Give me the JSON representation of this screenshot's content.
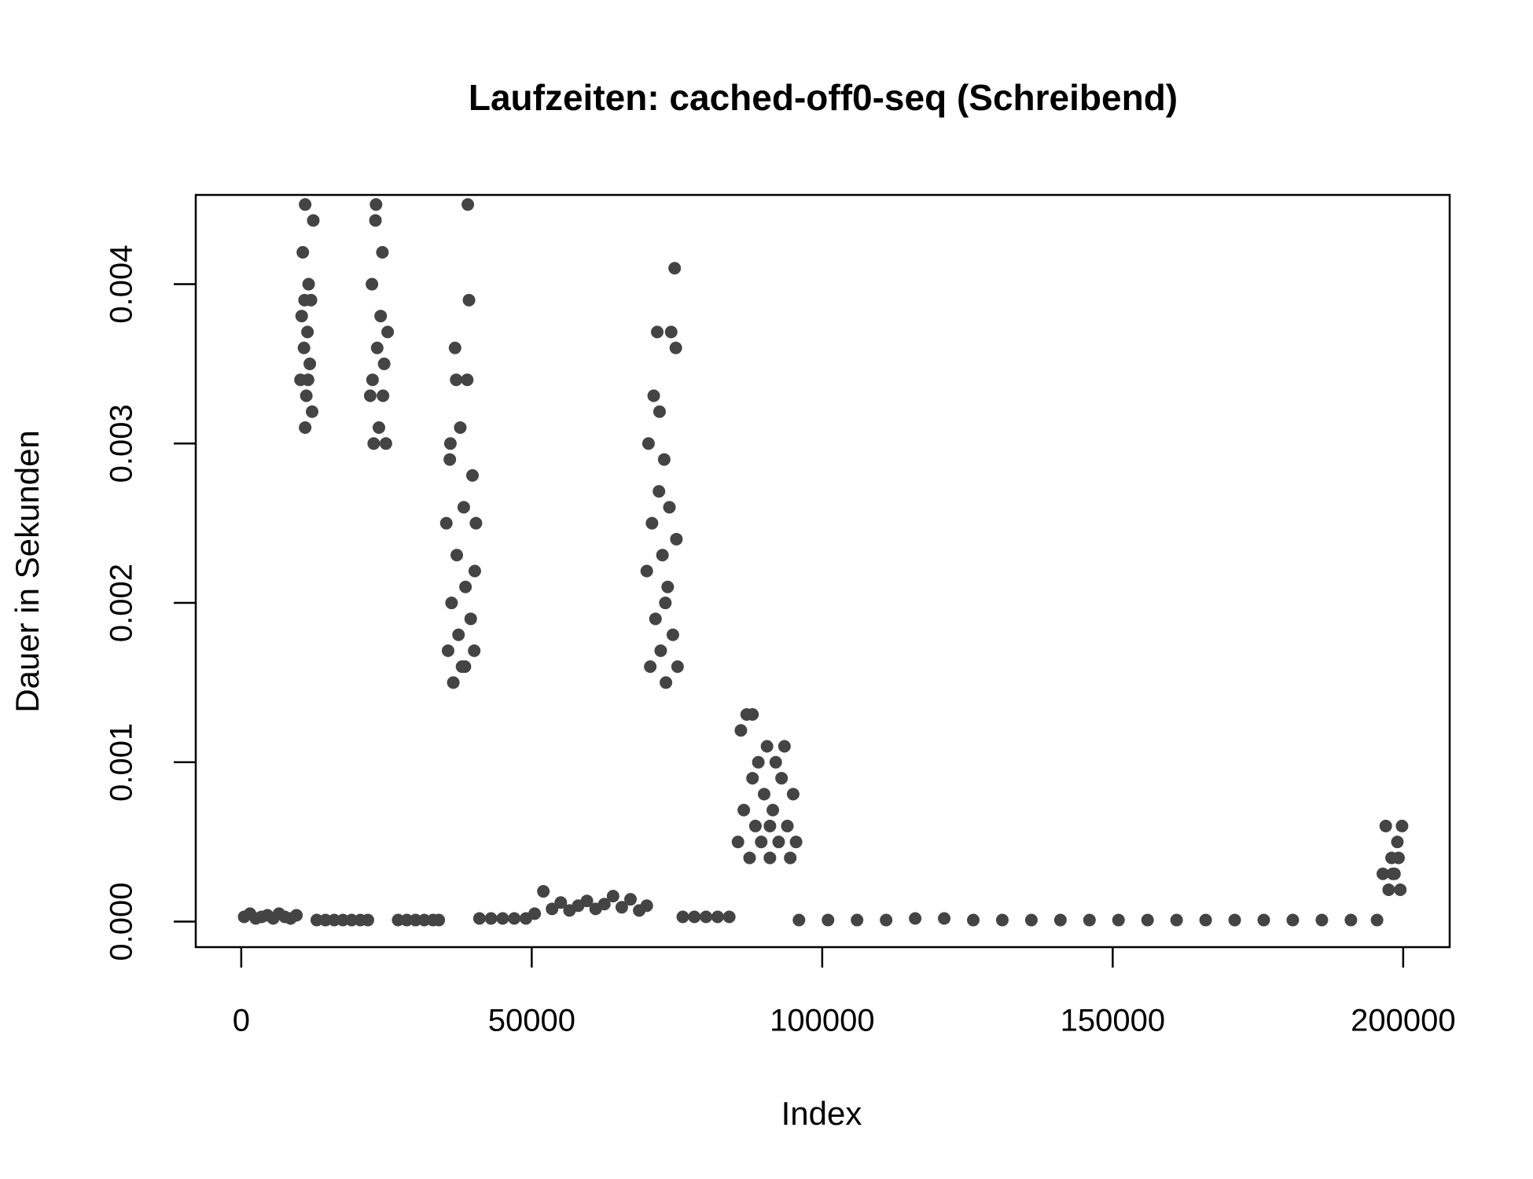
{
  "chart_data": {
    "type": "scatter",
    "title": "Laufzeiten: cached-off0-seq (Schreibend)",
    "x_label": "Index",
    "y_label": "Dauer in Sekunden",
    "color": "#444444",
    "xlim": [
      -7830,
      208000
    ],
    "ylim": [
      -0.00016,
      0.00456
    ],
    "xticks": [
      0,
      50000,
      100000,
      150000,
      200000
    ],
    "yticks": [
      {
        "value": 0,
        "label": "0.000"
      },
      {
        "value": 0.001,
        "label": "0.001"
      },
      {
        "value": 0.002,
        "label": "0.002"
      },
      {
        "value": 0.003,
        "label": "0.003"
      },
      {
        "value": 0.004,
        "label": "0.004"
      }
    ],
    "x": [
      500,
      1500,
      2500,
      3500,
      4500,
      5500,
      6500,
      7500,
      8500,
      9500,
      10200,
      10400,
      10600,
      10800,
      11000,
      11000,
      11200,
      11400,
      11600,
      11800,
      12000,
      12200,
      12400,
      11500,
      10900,
      13000,
      14500,
      16000,
      17500,
      19000,
      20500,
      21800,
      22200,
      22500,
      22800,
      23100,
      23400,
      23700,
      24000,
      24300,
      24600,
      24900,
      25200,
      23200,
      22600,
      24400,
      27000,
      28500,
      30000,
      31500,
      33000,
      34000,
      35300,
      35600,
      35900,
      36200,
      36500,
      36800,
      37100,
      37400,
      37700,
      38000,
      38300,
      38600,
      38900,
      39200,
      39500,
      39800,
      40100,
      40400,
      39000,
      37000,
      36000,
      38500,
      40200,
      41000,
      43000,
      45000,
      47000,
      49000,
      50500,
      52000,
      53500,
      55000,
      56500,
      58000,
      59500,
      61000,
      62500,
      64000,
      65500,
      67000,
      68500,
      69800,
      69800,
      70100,
      70400,
      70700,
      71000,
      71300,
      71600,
      71900,
      72200,
      72500,
      72800,
      73100,
      73400,
      73700,
      74000,
      74300,
      74600,
      74900,
      75100,
      74800,
      72000,
      73000,
      76000,
      78000,
      80000,
      82000,
      84000,
      85500,
      86000,
      86500,
      87000,
      87500,
      88000,
      88500,
      89000,
      89500,
      90000,
      90500,
      91000,
      91500,
      92000,
      92500,
      93000,
      93500,
      94000,
      94500,
      95000,
      95500,
      88000,
      91000,
      96000,
      101000,
      106000,
      111000,
      116000,
      121000,
      126000,
      131000,
      136000,
      141000,
      146000,
      151000,
      156000,
      161000,
      166000,
      171000,
      176000,
      181000,
      186000,
      191000,
      195500,
      196500,
      197000,
      197500,
      198000,
      198500,
      199000,
      199500,
      199800,
      198200,
      199200
    ],
    "values": [
      3e-05,
      5e-05,
      2e-05,
      3e-05,
      4e-05,
      2e-05,
      5e-05,
      3e-05,
      2e-05,
      4e-05,
      0.0034,
      0.0038,
      0.0042,
      0.0036,
      0.0031,
      0.0045,
      0.0033,
      0.0037,
      0.004,
      0.0035,
      0.0039,
      0.0032,
      0.0044,
      0.0034,
      0.0039,
      1e-05,
      1e-05,
      1e-05,
      1e-05,
      1e-05,
      1e-05,
      1e-05,
      0.0033,
      0.004,
      0.003,
      0.0044,
      0.0036,
      0.0031,
      0.0038,
      0.0042,
      0.0035,
      0.003,
      0.0037,
      0.0045,
      0.0034,
      0.0033,
      1e-05,
      1e-05,
      1e-05,
      1e-05,
      1e-05,
      1e-05,
      0.0025,
      0.0017,
      0.0029,
      0.002,
      0.0015,
      0.0036,
      0.0023,
      0.0018,
      0.0031,
      0.0016,
      0.0026,
      0.0021,
      0.0034,
      0.0039,
      0.0019,
      0.0028,
      0.0017,
      0.0025,
      0.0045,
      0.0034,
      0.003,
      0.0016,
      0.0022,
      2e-05,
      2e-05,
      2e-05,
      2e-05,
      2e-05,
      5e-05,
      0.00019,
      8e-05,
      0.00012,
      7e-05,
      0.0001,
      0.00013,
      8e-05,
      0.00011,
      0.00016,
      9e-05,
      0.00014,
      7e-05,
      0.0001,
      0.0022,
      0.003,
      0.0016,
      0.0025,
      0.0033,
      0.0019,
      0.0037,
      0.0027,
      0.0017,
      0.0023,
      0.0029,
      0.0015,
      0.0021,
      0.0026,
      0.0037,
      0.0018,
      0.0041,
      0.0024,
      0.0016,
      0.0036,
      0.0032,
      0.002,
      3e-05,
      3e-05,
      3e-05,
      3e-05,
      3e-05,
      0.0005,
      0.0012,
      0.0007,
      0.0013,
      0.0004,
      0.0009,
      0.0006,
      0.001,
      0.0005,
      0.0008,
      0.0011,
      0.0004,
      0.0007,
      0.001,
      0.0005,
      0.0009,
      0.0011,
      0.0006,
      0.0004,
      0.0008,
      0.0005,
      0.0013,
      0.0006,
      1e-05,
      1e-05,
      1e-05,
      1e-05,
      2e-05,
      2e-05,
      1e-05,
      1e-05,
      1e-05,
      1e-05,
      1e-05,
      1e-05,
      1e-05,
      1e-05,
      1e-05,
      1e-05,
      1e-05,
      1e-05,
      1e-05,
      1e-05,
      1e-05,
      0.0003,
      0.0006,
      0.0002,
      0.0004,
      0.0003,
      0.0005,
      0.0002,
      0.0006,
      0.0003,
      0.0004
    ]
  }
}
